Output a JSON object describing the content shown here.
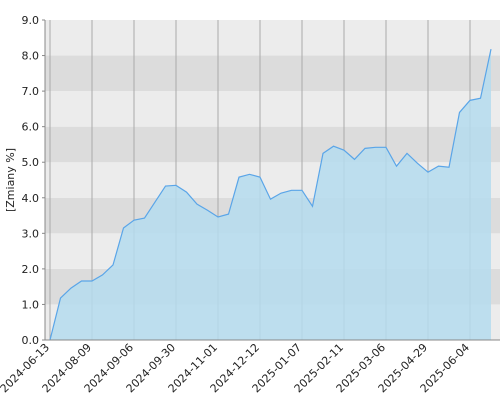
{
  "chart_data": {
    "type": "area",
    "y_label": "[Zmiany %]",
    "categories": [
      "2024-06-13",
      null,
      null,
      null,
      "2024-08-09",
      null,
      null,
      null,
      "2024-09-06",
      null,
      null,
      null,
      "2024-09-30",
      null,
      null,
      null,
      "2024-11-01",
      null,
      null,
      null,
      "2024-12-12",
      null,
      null,
      null,
      "2025-01-07",
      null,
      null,
      null,
      "2025-02-11",
      null,
      null,
      null,
      "2025-03-06",
      null,
      null,
      null,
      "2025-04-29",
      null,
      null,
      null,
      "2025-06-04",
      null,
      null
    ],
    "values": [
      0.0,
      1.18,
      1.46,
      1.66,
      1.66,
      1.83,
      2.11,
      3.15,
      3.37,
      3.43,
      3.88,
      4.33,
      4.35,
      4.16,
      3.82,
      3.65,
      3.46,
      3.54,
      4.58,
      4.66,
      4.58,
      3.96,
      4.13,
      4.21,
      4.21,
      3.76,
      5.25,
      5.45,
      5.34,
      5.08,
      5.39,
      5.42,
      5.42,
      4.89,
      5.25,
      4.97,
      4.72,
      4.89,
      4.86,
      6.4,
      6.74,
      6.8,
      8.18
    ],
    "color": "#5aa5e8",
    "fill": "#b5dcee",
    "ylim": [
      0,
      9
    ],
    "yticks": [
      {
        "value": 0,
        "label": "0.0"
      },
      {
        "value": 1,
        "label": "1.0"
      },
      {
        "value": 2,
        "label": "2.0"
      },
      {
        "value": 3,
        "label": "3.0"
      },
      {
        "value": 4,
        "label": "4.0"
      },
      {
        "value": 5,
        "label": "5.0"
      },
      {
        "value": 6,
        "label": "6.0"
      },
      {
        "value": 7,
        "label": "7.0"
      },
      {
        "value": 8,
        "label": "8.0"
      },
      {
        "value": 9,
        "label": "9.0"
      }
    ],
    "bands": [
      "#ececec",
      "#dcdcdc"
    ],
    "grid": true
  }
}
